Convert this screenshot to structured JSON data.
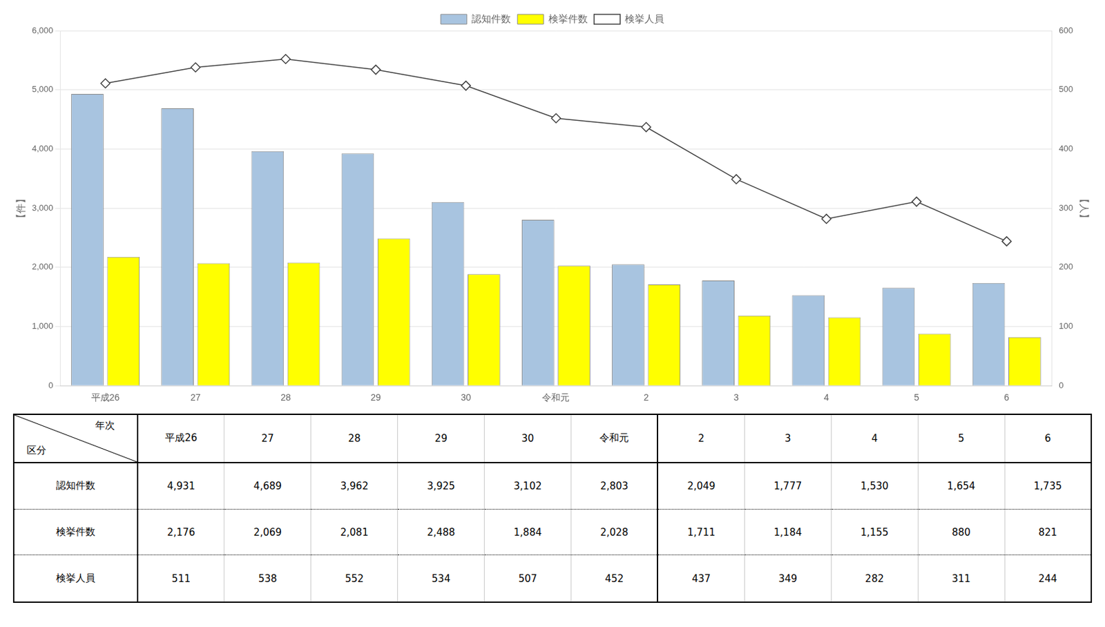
{
  "chart_data": {
    "type": "bar",
    "categories": [
      "平成26",
      "27",
      "28",
      "29",
      "30",
      "令和元",
      "2",
      "3",
      "4",
      "5",
      "6"
    ],
    "ylabel": "【件】",
    "y2label": "【人】",
    "series": [
      {
        "name": "認知件数",
        "color": "#a8c4e0",
        "values": [
          4931,
          4689,
          3962,
          3925,
          3102,
          2803,
          2049,
          1777,
          1530,
          1654,
          1735
        ],
        "value_labels": [
          "4,931",
          "4,689",
          "3,962",
          "3,925",
          "3,102",
          "2,803",
          "2,049",
          "1,777",
          "1,530",
          "1,654",
          "1,735"
        ]
      },
      {
        "name": "検挙件数",
        "color": "#ffff00",
        "values": [
          2176,
          2069,
          2081,
          2488,
          1884,
          2028,
          1711,
          1184,
          1155,
          880,
          821
        ],
        "value_labels": [
          "2,176",
          "2,069",
          "2,081",
          "2,488",
          "1,884",
          "2,028",
          "1,711",
          "1,184",
          "1,155",
          "880",
          "821"
        ]
      },
      {
        "name": "検挙人員",
        "type": "line",
        "axis": "y2",
        "color": "#404040",
        "marker": "diamond",
        "values": [
          511,
          538,
          552,
          534,
          507,
          452,
          437,
          349,
          282,
          311,
          244
        ]
      }
    ],
    "ylim": [
      0,
      6000
    ],
    "yticks": [
      0,
      {
        "value": 1000,
        "label": "1,000"
      },
      {
        "value": 2000,
        "label": "2,000"
      },
      {
        "value": 3000,
        "label": "3,000"
      },
      {
        "value": 4000,
        "label": "4,000"
      },
      {
        "value": 5000,
        "label": "5,000"
      },
      {
        "value": 6000,
        "label": "6,000"
      }
    ],
    "y2lim": [
      0,
      600
    ],
    "y2ticks": [
      0,
      100,
      200,
      300,
      400,
      500,
      600
    ],
    "grid": true,
    "legend": "top",
    "annotations": [
      "年次",
      "区分"
    ]
  }
}
